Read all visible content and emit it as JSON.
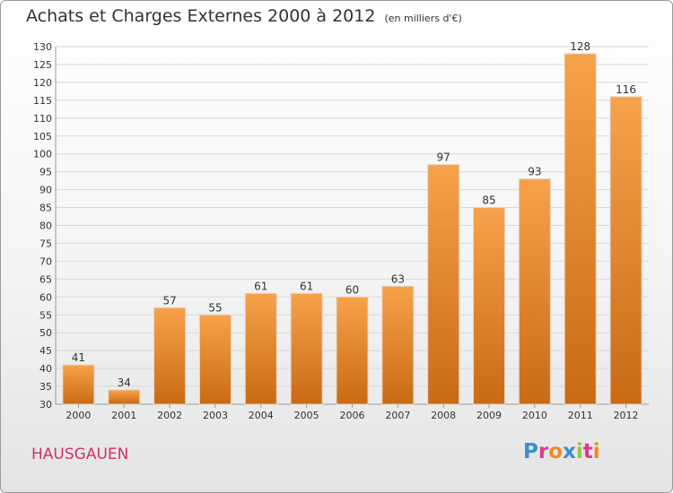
{
  "title": {
    "main": "Achats et Charges Externes 2000 à 2012",
    "unit": "(en milliers d'€)"
  },
  "commune": "HAUSGAUEN",
  "brand": {
    "letters": [
      "P",
      "r",
      "o",
      "x",
      "i",
      "t",
      "i"
    ],
    "colors": [
      "#3a8fd0",
      "#e03a8a",
      "#f08a20",
      "#3a8fd0",
      "#9bc53d",
      "#e03a8a",
      "#f08a20"
    ]
  },
  "colors": {
    "bar_light": "#f7a24a",
    "bar_dark": "#c96a14",
    "grid": "#d8d8d8",
    "axis_text": "#333333",
    "commune_text": "#cc3366"
  },
  "chart_data": {
    "type": "bar",
    "categories": [
      "2000",
      "2001",
      "2002",
      "2003",
      "2004",
      "2005",
      "2006",
      "2007",
      "2008",
      "2009",
      "2010",
      "2011",
      "2012"
    ],
    "values": [
      41,
      34,
      57,
      55,
      61,
      61,
      60,
      63,
      97,
      85,
      93,
      128,
      116
    ],
    "ylim": [
      30,
      130
    ],
    "yticks": [
      30,
      35,
      40,
      45,
      50,
      55,
      60,
      65,
      70,
      75,
      80,
      85,
      90,
      95,
      100,
      105,
      110,
      115,
      120,
      125,
      130
    ],
    "grid": true
  }
}
